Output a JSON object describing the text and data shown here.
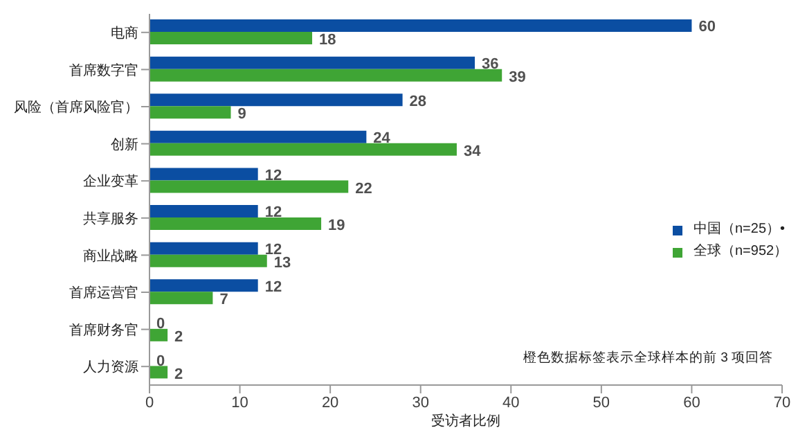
{
  "chart_data": {
    "type": "bar",
    "orientation": "horizontal",
    "xlabel": "受访者比例",
    "categories": [
      "电商",
      "首席数字官",
      "风险（首席风险官）",
      "创新",
      "企业变革",
      "共享服务",
      "商业战略",
      "首席运营官",
      "首席财务官",
      "人力资源"
    ],
    "series": [
      {
        "name": "中国（n=25）•",
        "color": "#0b4ea2",
        "values": [
          60,
          36,
          28,
          24,
          12,
          12,
          12,
          12,
          0,
          0
        ]
      },
      {
        "name": "全球（n=952）",
        "color": "#3fa535",
        "values": [
          18,
          39,
          9,
          34,
          22,
          19,
          13,
          7,
          2,
          2
        ]
      }
    ],
    "xlim": [
      0,
      70
    ],
    "xticks": [
      0,
      10,
      20,
      30,
      40,
      50,
      60,
      70
    ],
    "data_labels": true,
    "legend": "right",
    "grid": false,
    "annotations": [
      "橙色数据标签表示全球样本的前 3 项回答"
    ]
  }
}
